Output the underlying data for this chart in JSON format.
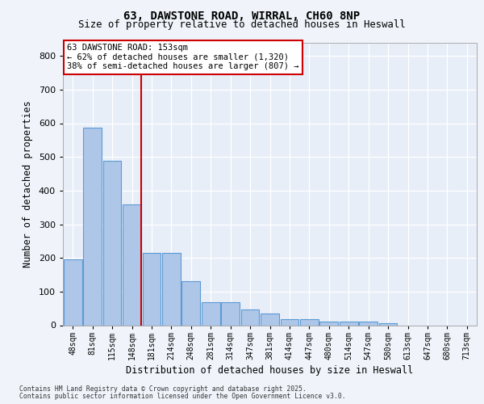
{
  "title_line1": "63, DAWSTONE ROAD, WIRRAL, CH60 8NP",
  "title_line2": "Size of property relative to detached houses in Heswall",
  "xlabel": "Distribution of detached houses by size in Heswall",
  "ylabel": "Number of detached properties",
  "categories": [
    "48sqm",
    "81sqm",
    "115sqm",
    "148sqm",
    "181sqm",
    "214sqm",
    "248sqm",
    "281sqm",
    "314sqm",
    "347sqm",
    "381sqm",
    "414sqm",
    "447sqm",
    "480sqm",
    "514sqm",
    "547sqm",
    "580sqm",
    "613sqm",
    "647sqm",
    "680sqm",
    "713sqm"
  ],
  "values": [
    196,
    588,
    488,
    360,
    216,
    216,
    132,
    68,
    68,
    48,
    35,
    18,
    18,
    10,
    12,
    12,
    6,
    0,
    0,
    0,
    0
  ],
  "bar_color": "#aec6e8",
  "bar_edge_color": "#5b9bd5",
  "vline_bar_index": 3,
  "vline_color": "#cc0000",
  "annotation_line1": "63 DAWSTONE ROAD: 153sqm",
  "annotation_line2": "← 62% of detached houses are smaller (1,320)",
  "annotation_line3": "38% of semi-detached houses are larger (807) →",
  "annotation_box_color": "#ffffff",
  "annotation_box_edge_color": "#cc0000",
  "ylim": [
    0,
    840
  ],
  "yticks": [
    0,
    100,
    200,
    300,
    400,
    500,
    600,
    700,
    800
  ],
  "footer_line1": "Contains HM Land Registry data © Crown copyright and database right 2025.",
  "footer_line2": "Contains public sector information licensed under the Open Government Licence v3.0.",
  "bg_color": "#f0f4fa",
  "plot_bg_color": "#e8eef8"
}
